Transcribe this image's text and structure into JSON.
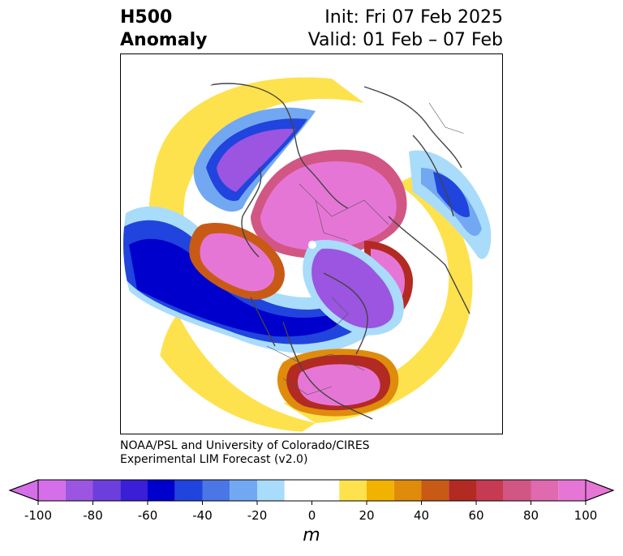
{
  "title": {
    "left_line1": "H500",
    "left_line2": "Anomaly",
    "right_line1": "Init: Fri 07 Feb 2025",
    "right_line2": "Valid: 01 Feb – 07 Feb"
  },
  "credit": {
    "line1": "NOAA/PSL and University of Colorado/CIRES",
    "line2": "Experimental LIM Forecast (v2.0)"
  },
  "colorbar": {
    "unit": "m",
    "ticks": [
      "-100",
      "-80",
      "-60",
      "-40",
      "-20",
      "0",
      "20",
      "40",
      "60",
      "80",
      "100"
    ],
    "levels": [
      -100,
      -90,
      -80,
      -70,
      -60,
      -50,
      -40,
      -30,
      -20,
      -10,
      10,
      20,
      30,
      40,
      50,
      60,
      70,
      80,
      90,
      100
    ],
    "colors": [
      "#d56ee9",
      "#9b55e0",
      "#6c3fdc",
      "#3a1fd6",
      "#0000cd",
      "#2044dd",
      "#4c76e6",
      "#72a8f2",
      "#a9dcfa",
      "#ffffff",
      "#fde24e",
      "#f2b300",
      "#df8b0c",
      "#c85a16",
      "#b22a22",
      "#c63a52",
      "#d25684",
      "#df6ab0",
      "#e676d6"
    ],
    "extend_low_color": "#d56ee9",
    "extend_high_color": "#e676d6"
  }
}
